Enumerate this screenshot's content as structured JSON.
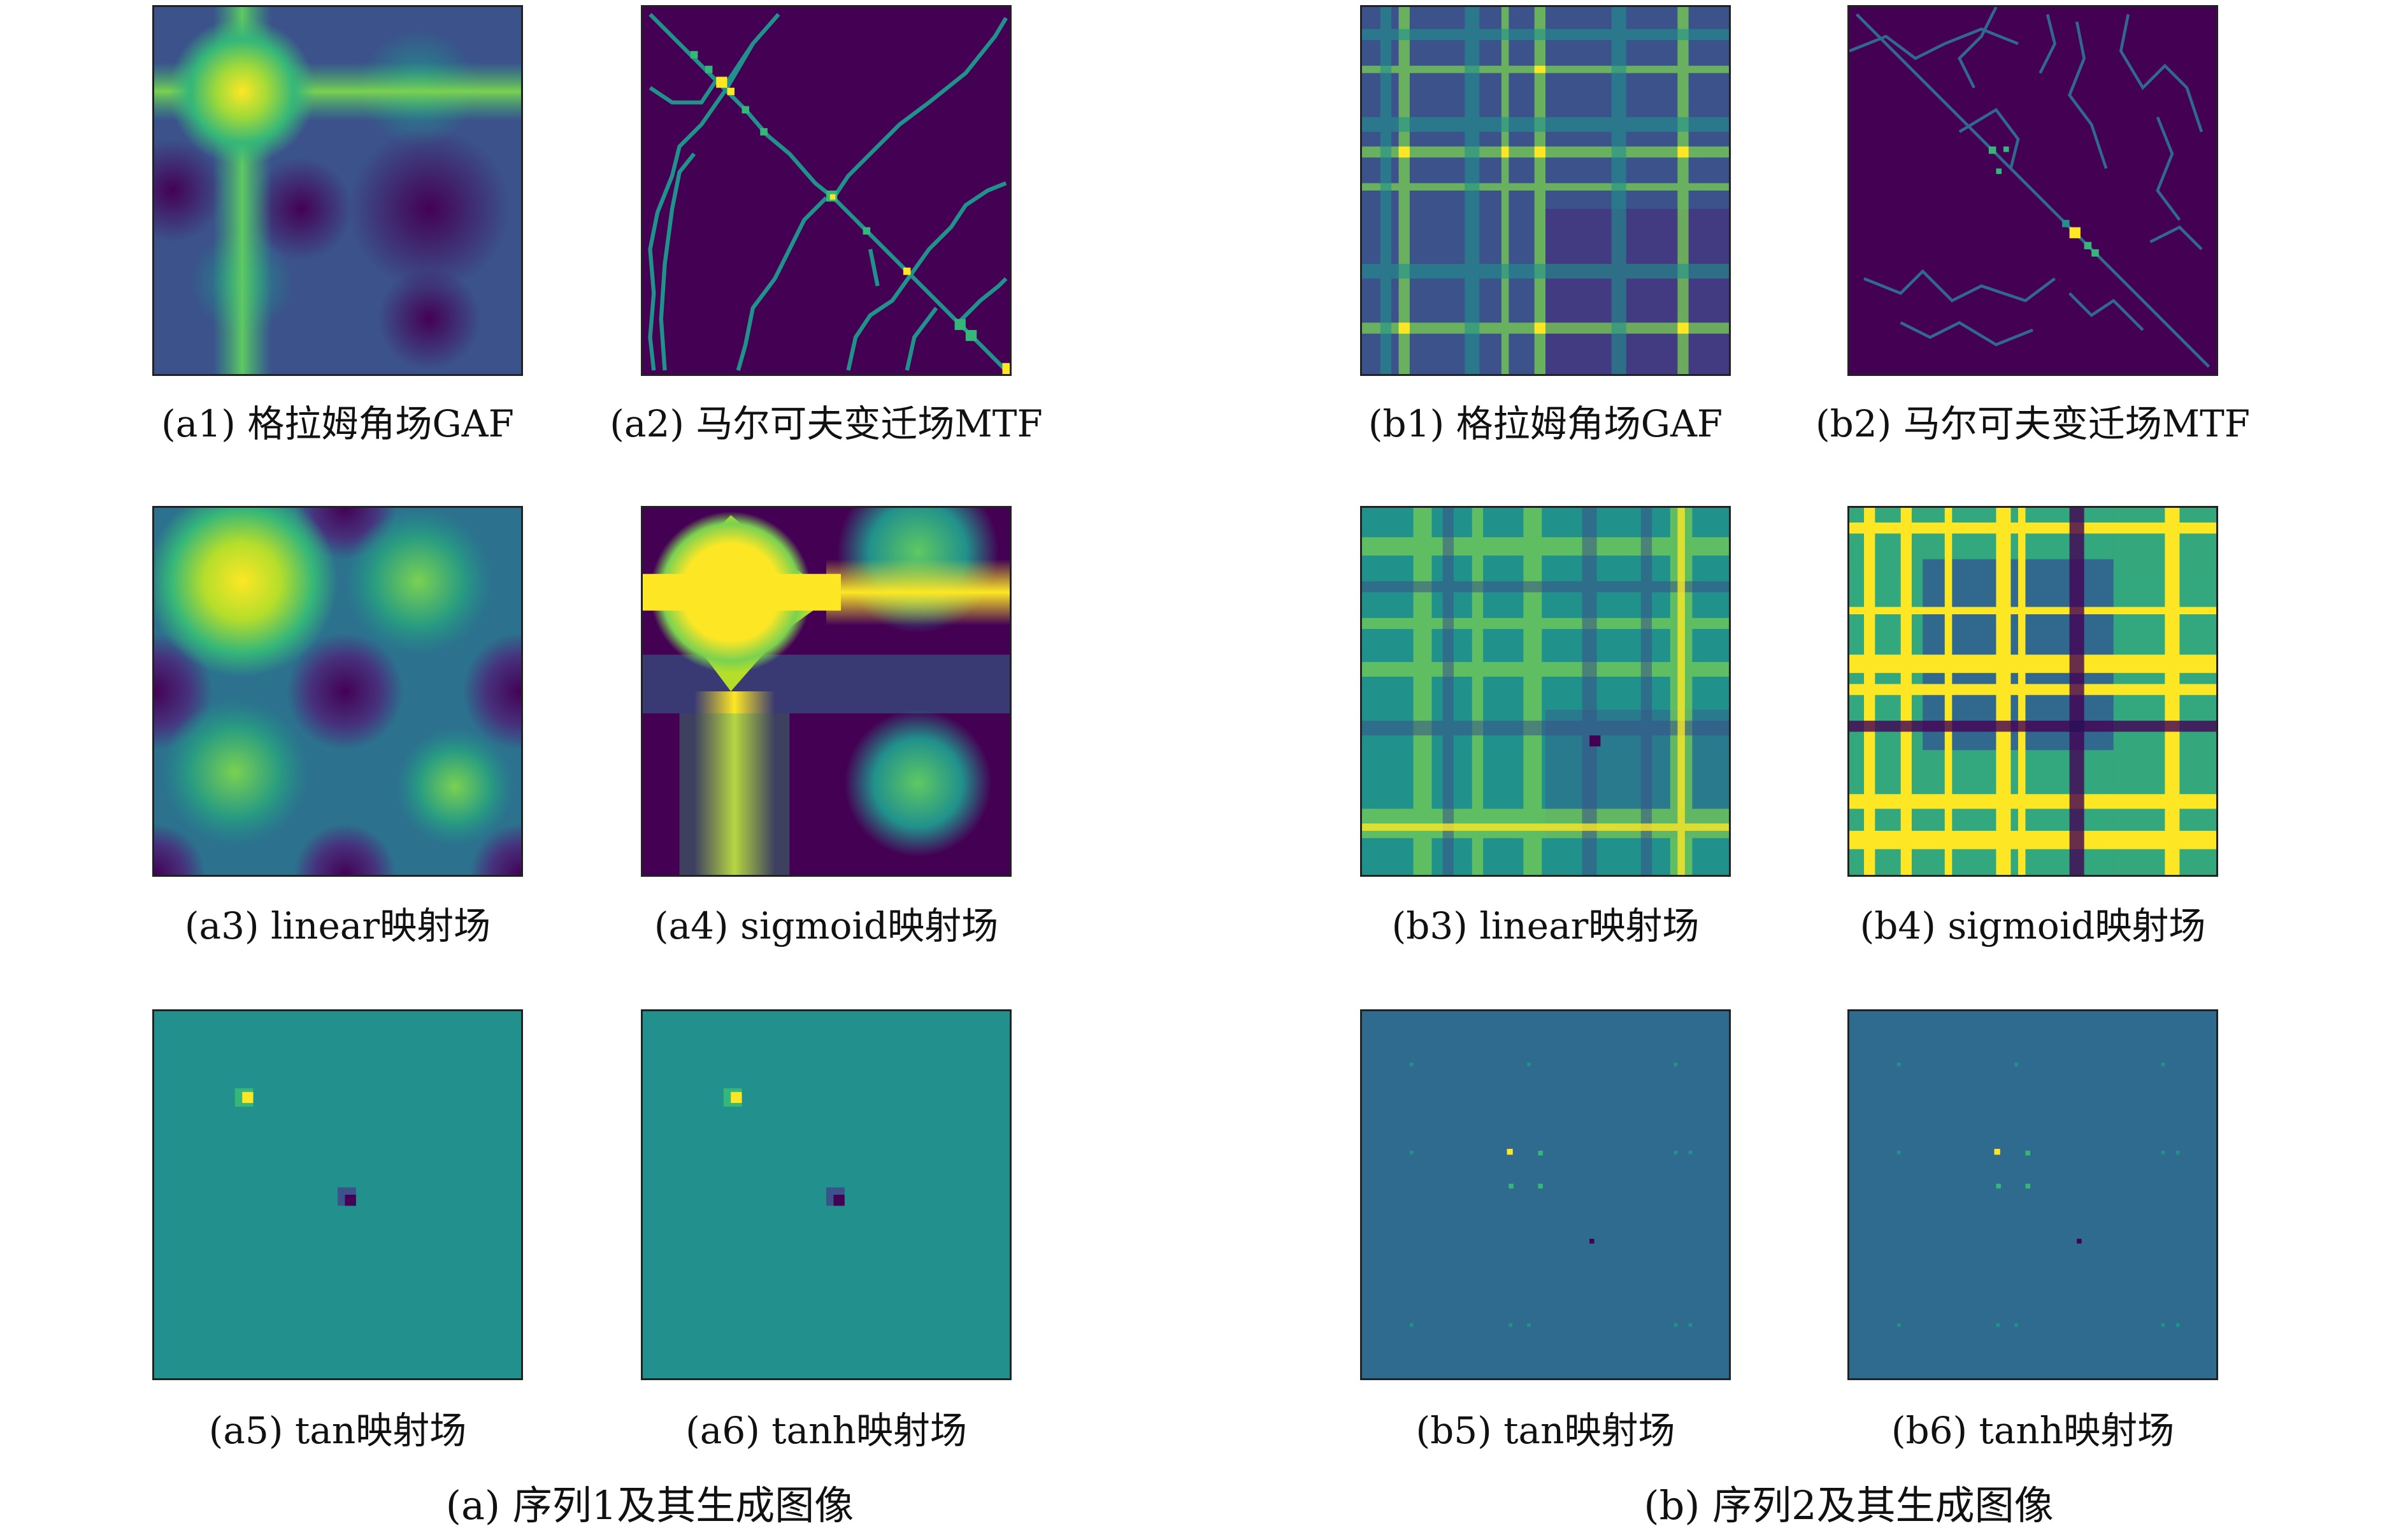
{
  "groups": [
    {
      "caption": "(a) 序列1及其生成图像",
      "panels": [
        {
          "caption": "(a1) 格拉姆角场GAF",
          "colormap": "viridis"
        },
        {
          "caption": "(a2) 马尔可夫变迁场MTF",
          "colormap": "viridis"
        },
        {
          "caption": "(a3) linear映射场",
          "colormap": "viridis"
        },
        {
          "caption": "(a4) sigmoid映射场",
          "colormap": "viridis"
        },
        {
          "caption": "(a5) tan映射场",
          "colormap": "viridis"
        },
        {
          "caption": "(a6) tanh映射场",
          "colormap": "viridis"
        }
      ]
    },
    {
      "caption": "(b) 序列2及其生成图像",
      "panels": [
        {
          "caption": "(b1) 格拉姆角场GAF",
          "colormap": "viridis"
        },
        {
          "caption": "(b2) 马尔可夫变迁场MTF",
          "colormap": "viridis"
        },
        {
          "caption": "(b3) linear映射场",
          "colormap": "viridis"
        },
        {
          "caption": "(b4) sigmoid映射场",
          "colormap": "viridis"
        },
        {
          "caption": "(b5) tan映射场",
          "colormap": "viridis"
        },
        {
          "caption": "(b6) tanh映射场",
          "colormap": "viridis"
        }
      ]
    }
  ],
  "colors": {
    "viridis_dark": "#440154",
    "viridis_blue": "#31688e",
    "viridis_teal": "#21918c",
    "viridis_green": "#35b779",
    "viridis_yellow": "#fde725",
    "frame": "#222222"
  }
}
